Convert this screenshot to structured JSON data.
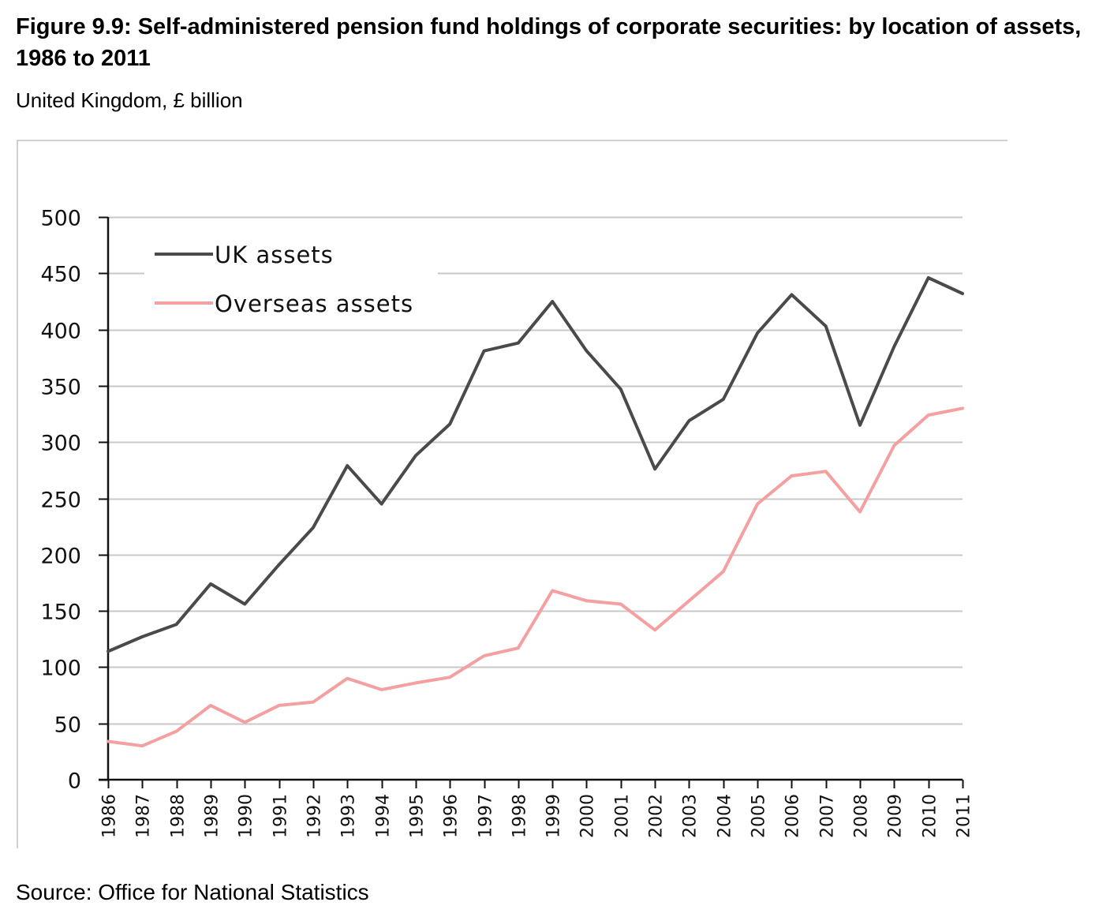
{
  "header": {
    "title": "Figure 9.9: Self-administered pension fund holdings of corporate securities: by location of assets, 1986 to 2011",
    "subtitle": "United Kingdom, £ billion"
  },
  "footer": {
    "source": "Source: Office for National Statistics"
  },
  "chart_data": {
    "type": "line",
    "title": "Figure 9.9: Self-administered pension fund holdings of corporate securities: by location of assets, 1986 to 2011",
    "subtitle": "United Kingdom, £ billion",
    "xlabel": "",
    "ylabel": "",
    "ylim": [
      0,
      500
    ],
    "yticks": [
      0,
      50,
      100,
      150,
      200,
      250,
      300,
      350,
      400,
      450,
      500
    ],
    "grid": true,
    "legend_position": "top-left",
    "x": [
      "1986",
      "1987",
      "1988",
      "1989",
      "1990",
      "1991",
      "1992",
      "1993",
      "1994",
      "1995",
      "1996",
      "1997",
      "1998",
      "1999",
      "2000",
      "2001",
      "2002",
      "2003",
      "2004",
      "2005",
      "2006",
      "2007",
      "2008",
      "2009",
      "2010",
      "2011"
    ],
    "series": [
      {
        "name": "UK assets",
        "color": "#4a4a4a",
        "values": [
          114,
          127,
          138,
          174,
          156,
          191,
          224,
          279,
          245,
          288,
          316,
          381,
          388,
          425,
          381,
          347,
          276,
          319,
          338,
          397,
          431,
          403,
          315,
          385,
          446,
          432
        ]
      },
      {
        "name": "Overseas assets",
        "color": "#f4a0a0",
        "values": [
          34,
          30,
          43,
          66,
          51,
          66,
          69,
          90,
          80,
          86,
          91,
          110,
          117,
          168,
          159,
          156,
          133,
          159,
          185,
          245,
          270,
          274,
          238,
          297,
          324,
          330
        ]
      }
    ]
  }
}
